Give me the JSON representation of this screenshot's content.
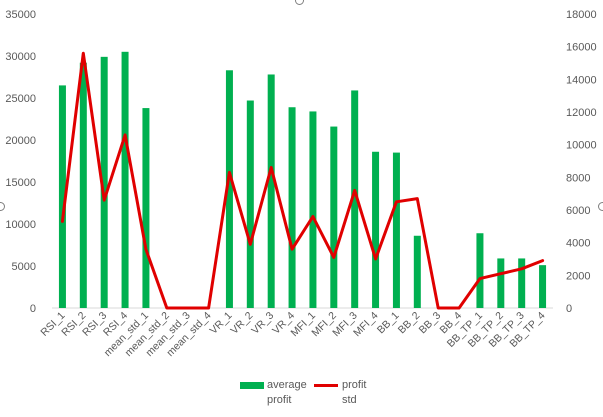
{
  "chart_data": {
    "type": "bar",
    "categories": [
      "RSI_1",
      "RSI_2",
      "RSI_3",
      "RSI_4",
      "mean_std_1",
      "mean_std_2",
      "mean_std_3",
      "mean_std_4",
      "VR_1",
      "VR_2",
      "VR_3",
      "VR_4",
      "MFI_1",
      "MFI_2",
      "MFI_3",
      "MFI_4",
      "BB_1",
      "BB_2",
      "BB_3",
      "BB_4",
      "BB_TP_1",
      "BB_TP_2",
      "BB_TP_3",
      "BB_TP_4"
    ],
    "series": [
      {
        "name": "average profit",
        "type": "bar",
        "axis": "left",
        "color": "#00b050",
        "values": [
          26500,
          29200,
          29900,
          30500,
          23800,
          0,
          0,
          0,
          28300,
          24700,
          27800,
          23900,
          23400,
          21600,
          25900,
          18600,
          18500,
          8600,
          0,
          0,
          8900,
          5900,
          5900,
          5100
        ]
      },
      {
        "name": "profit std",
        "type": "line",
        "axis": "right",
        "color": "#e00000",
        "values": [
          5300,
          15600,
          6600,
          10600,
          3600,
          0,
          0,
          0,
          8300,
          3900,
          8600,
          3600,
          5600,
          3100,
          7200,
          3000,
          6500,
          6700,
          0,
          0,
          1800,
          2100,
          2400,
          2900
        ]
      }
    ],
    "y_left": {
      "ylim": [
        0,
        35000
      ],
      "ticks": [
        "0",
        "5000",
        "10000",
        "15000",
        "20000",
        "25000",
        "30000",
        "35000"
      ]
    },
    "y_right": {
      "ylim": [
        0,
        18000
      ],
      "ticks": [
        "0",
        "2000",
        "4000",
        "6000",
        "8000",
        "10000",
        "12000",
        "14000",
        "16000",
        "18000"
      ]
    },
    "grid": false,
    "legend": {
      "placement": "bottom",
      "entries": [
        {
          "text": "average\nprofit",
          "kind": "bar",
          "color": "#00b050"
        },
        {
          "text": "profit\nstd",
          "kind": "line",
          "color": "#e00000"
        }
      ]
    },
    "title": "",
    "xlabel": "",
    "ylabel": ""
  }
}
